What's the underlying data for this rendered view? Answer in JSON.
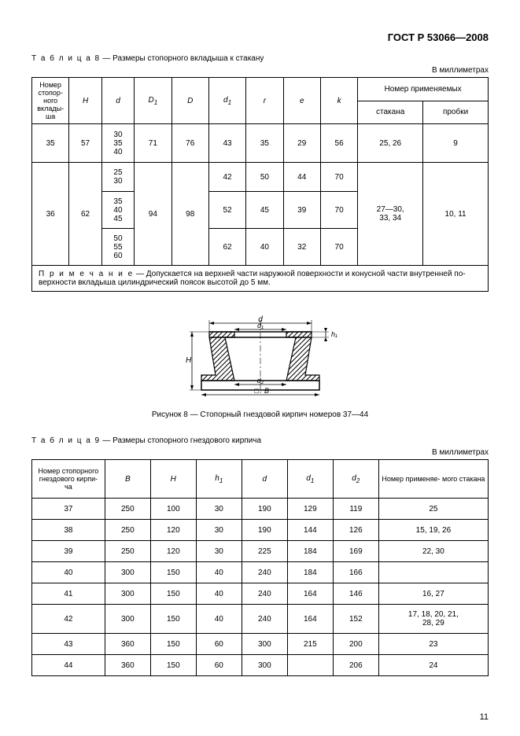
{
  "doc_header": "ГОСТ Р 53066—2008",
  "page_number": "11",
  "table8": {
    "caption_lead": "Т а б л и ц а  8",
    "caption_rest": " — Размеры стопорного вкладыша к стакану",
    "units": "В миллиметрах",
    "headers": {
      "num": "Номер стопор- ного вклады- ша",
      "H": "H",
      "d": "d",
      "D1": "D",
      "D1_sub": "1",
      "D": "D",
      "d1": "d",
      "d1_sub": "1",
      "r": "r",
      "e": "e",
      "k": "k",
      "group": "Номер применяемых",
      "stakana": "стакана",
      "probki": "пробки"
    },
    "row35": {
      "num": "35",
      "H": "57",
      "d": "30\n35\n40",
      "D1": "71",
      "D": "76",
      "d1": "43",
      "r": "35",
      "e": "29",
      "k": "56",
      "stakana": "25, 26",
      "probki": "9"
    },
    "row36": {
      "num": "36",
      "H": "62",
      "D1": "94",
      "D": "98",
      "d_a": "25\n30",
      "d_b": "35\n40\n45",
      "d_c": "50\n55\n60",
      "d1_a": "42",
      "r_a": "50",
      "e_a": "44",
      "k_a": "70",
      "d1_b": "52",
      "r_b": "45",
      "e_b": "39",
      "k_b": "70",
      "d1_c": "62",
      "r_c": "40",
      "e_c": "32",
      "k_c": "70",
      "stakana": "27—30,\n33, 34",
      "probki": "10, 11"
    },
    "note_lead": "П р и м е ч а н и е",
    "note_rest": " — Допускается на верхней части наружной поверхности и конусной части внутренней по- верхности вкладыша цилиндрический поясок высотой до 5 мм."
  },
  "figure8": {
    "caption": "Рисунок 8 — Стопорный гнездовой кирпич номеров 37—44",
    "labels": {
      "d": "d",
      "d1": "d₁",
      "d2": "d₂",
      "h1": "h₁",
      "H": "H",
      "B": "□B"
    }
  },
  "table9": {
    "caption_lead": "Т а б л и ц а  9",
    "caption_rest": " — Размеры стопорного гнездового кирпича",
    "units": "В миллиметрах",
    "headers": {
      "num": "Номер стопорного гнездового кирпи- ча",
      "B": "B",
      "H": "H",
      "h1": "h",
      "h1_sub": "1",
      "d": "d",
      "d1": "d",
      "d1_sub": "1",
      "d2": "d",
      "d2_sub": "2",
      "applied": "Номер применяе- мого стакана"
    },
    "rows": [
      {
        "num": "37",
        "B": "250",
        "H": "100",
        "h1": "30",
        "d": "190",
        "d1": "129",
        "d2": "119",
        "app": "25"
      },
      {
        "num": "38",
        "B": "250",
        "H": "120",
        "h1": "30",
        "d": "190",
        "d1": "144",
        "d2": "126",
        "app": "15, 19, 26"
      },
      {
        "num": "39",
        "B": "250",
        "H": "120",
        "h1": "30",
        "d": "225",
        "d1": "184",
        "d2": "169",
        "app": "22, 30"
      },
      {
        "num": "40",
        "B": "300",
        "H": "150",
        "h1": "40",
        "d": "240",
        "d1": "184",
        "d2": "166",
        "app": ""
      },
      {
        "num": "41",
        "B": "300",
        "H": "150",
        "h1": "40",
        "d": "240",
        "d1": "164",
        "d2": "146",
        "app": "16, 27"
      },
      {
        "num": "42",
        "B": "300",
        "H": "150",
        "h1": "40",
        "d": "240",
        "d1": "164",
        "d2": "152",
        "app": "17, 18, 20, 21,\n28, 29"
      },
      {
        "num": "43",
        "B": "360",
        "H": "150",
        "h1": "60",
        "d": "300",
        "d1": "215",
        "d2": "200",
        "app": "23"
      },
      {
        "num": "44",
        "B": "360",
        "H": "150",
        "h1": "60",
        "d": "300",
        "d1": "",
        "d2": "206",
        "app": "24"
      }
    ]
  }
}
